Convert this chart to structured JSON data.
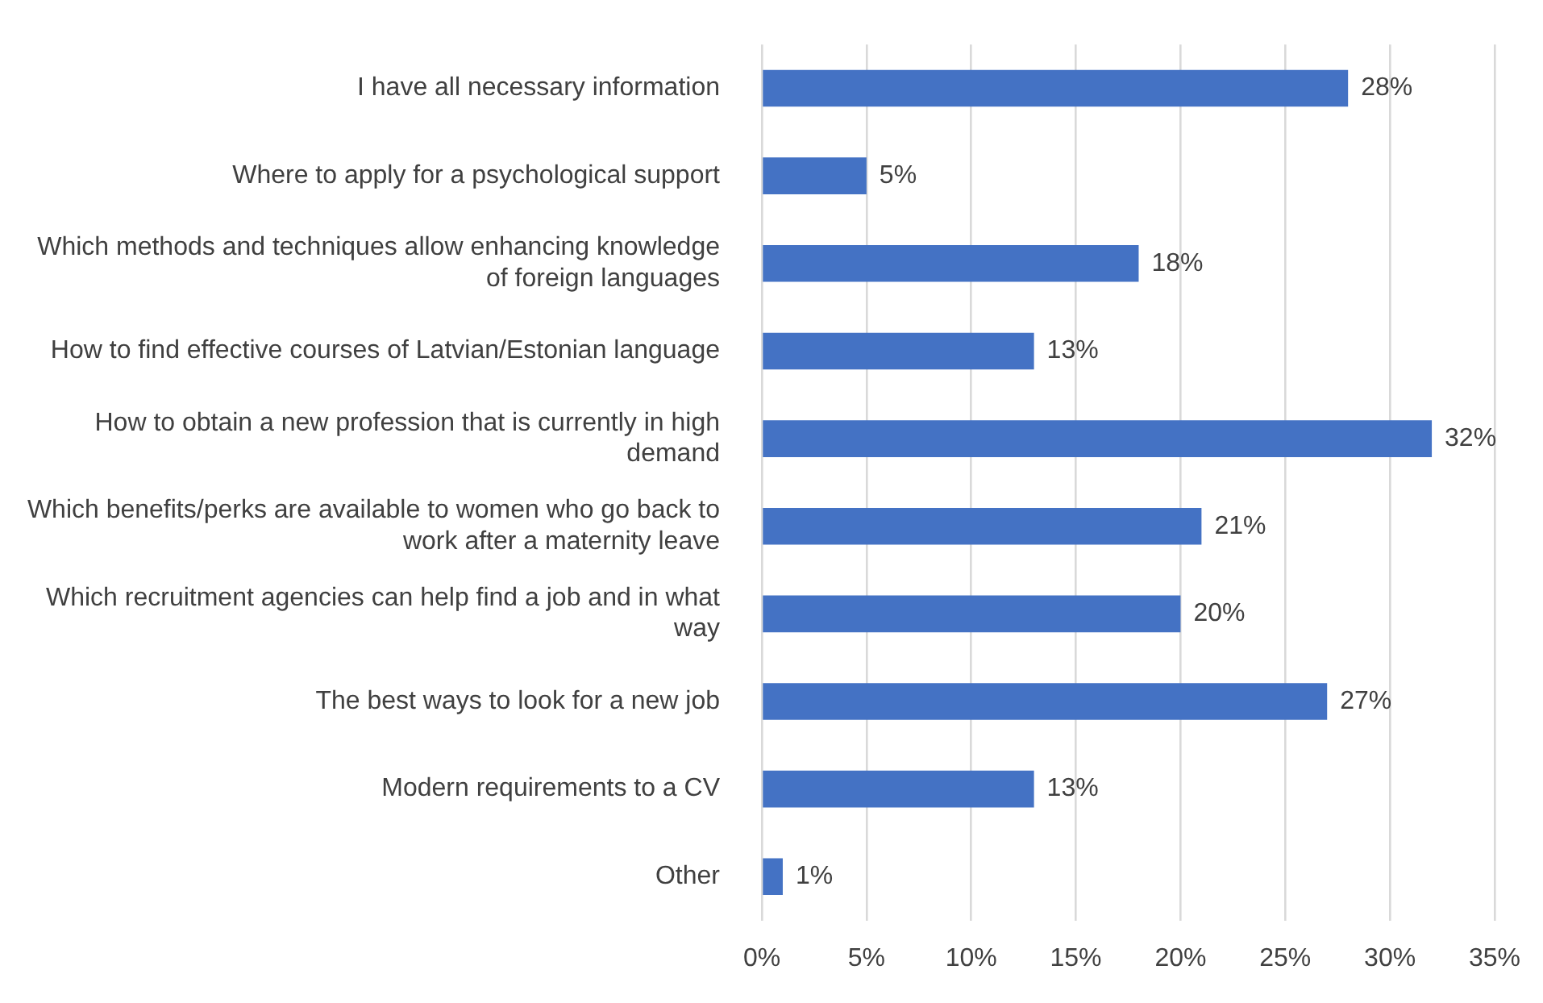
{
  "chart_data": {
    "type": "bar",
    "orientation": "horizontal",
    "categories": [
      "I have all necessary information",
      "Where to apply for a psychological support",
      "Which methods and techniques allow enhancing knowledge of foreign languages",
      "How to find effective courses of Latvian/Estonian language",
      "How to obtain a new profession that is currently in high demand",
      "Which benefits/perks are available to women who go back to work after a maternity leave",
      "Which recruitment agencies can help find a job and in what way",
      "The best ways to look for a new job",
      "Modern requirements to a CV",
      "Other"
    ],
    "values": [
      28,
      5,
      18,
      13,
      32,
      21,
      20,
      27,
      13,
      1
    ],
    "value_labels": [
      "28%",
      "5%",
      "18%",
      "13%",
      "32%",
      "21%",
      "20%",
      "27%",
      "13%",
      "1%"
    ],
    "color": "#4472c4",
    "xlim": [
      0,
      35
    ],
    "xticks": [
      {
        "value": 0,
        "label": "0%"
      },
      {
        "value": 5,
        "label": "5%"
      },
      {
        "value": 10,
        "label": "10%"
      },
      {
        "value": 15,
        "label": "15%"
      },
      {
        "value": 20,
        "label": "20%"
      },
      {
        "value": 25,
        "label": "25%"
      },
      {
        "value": 30,
        "label": "30%"
      },
      {
        "value": 35,
        "label": "35%"
      }
    ],
    "grid": "x",
    "legend": false
  }
}
